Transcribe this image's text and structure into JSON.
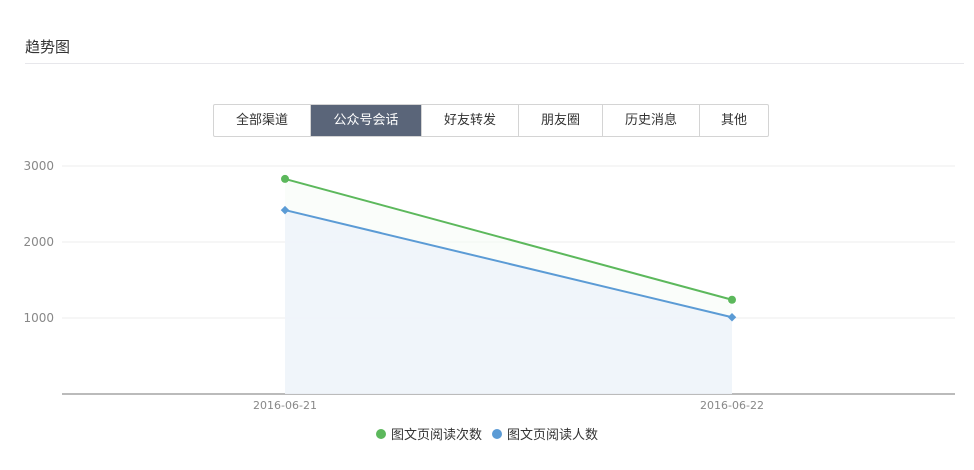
{
  "header": {
    "title": "趋势图"
  },
  "tabs": [
    {
      "label": "全部渠道",
      "active": false
    },
    {
      "label": "公众号会话",
      "active": true
    },
    {
      "label": "好友转发",
      "active": false
    },
    {
      "label": "朋友圈",
      "active": false
    },
    {
      "label": "历史消息",
      "active": false
    },
    {
      "label": "其他",
      "active": false
    }
  ],
  "chart_data": {
    "type": "line",
    "categories": [
      "2016-06-21",
      "2016-06-22"
    ],
    "series": [
      {
        "name": "图文页阅读次数",
        "values": [
          2830,
          1240
        ],
        "color": "#5cb85c"
      },
      {
        "name": "图文页阅读人数",
        "values": [
          2420,
          1010
        ],
        "color": "#5b9bd5",
        "area": true
      }
    ],
    "yticks": [
      1000,
      2000,
      3000
    ],
    "ylim": [
      0,
      3000
    ],
    "grid": true,
    "legend": "bottom"
  }
}
